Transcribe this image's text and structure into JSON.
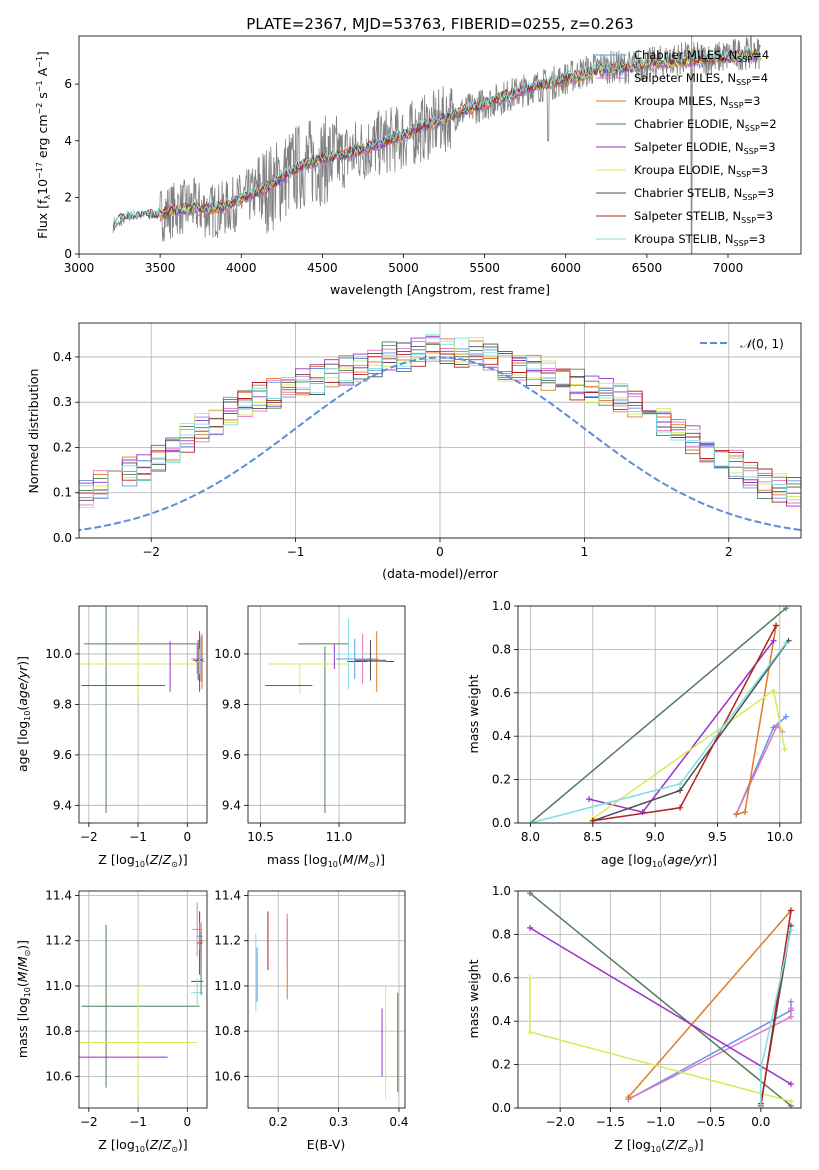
{
  "chart_data": [
    {
      "type": "line",
      "title": "PLATE=2367, MJD=53763, FIBERID=0255, z=0.263",
      "xlabel": "wavelength [Angstrom, rest frame]",
      "ylabel_parts": {
        "a": "Flux [f",
        "b": "10",
        "c": "−17",
        "d": " erg cm",
        "e": "−2",
        "f": " s",
        "g": "−1",
        "h": " A",
        "i": "−1",
        "j": "]",
        "sub": "λ"
      },
      "xlim": [
        3000,
        7450
      ],
      "ylim": [
        0,
        7.7
      ],
      "xticks": [
        "3000",
        "3500",
        "4000",
        "4500",
        "5000",
        "5500",
        "6000",
        "6500",
        "7000"
      ],
      "yticks": [
        "0",
        "2",
        "4",
        "6"
      ],
      "data_color": "#808080",
      "x": [
        3210,
        3300,
        3400,
        3500,
        3600,
        3700,
        3800,
        3900,
        4000,
        4100,
        4200,
        4300,
        4400,
        4500,
        4600,
        4700,
        4800,
        4900,
        5000,
        5100,
        5200,
        5300,
        5400,
        5500,
        5600,
        5700,
        5800,
        5900,
        6000,
        6100,
        6200,
        6300,
        6400,
        6500,
        6600,
        6700,
        6800,
        6900,
        7000,
        7100,
        7200
      ],
      "data_y": [
        0.9,
        1.3,
        1.4,
        1.4,
        1.6,
        1.7,
        1.5,
        1.6,
        1.9,
        2.2,
        2.4,
        2.9,
        3.2,
        3.3,
        3.4,
        3.6,
        3.8,
        4.0,
        4.1,
        4.4,
        4.6,
        4.9,
        5.1,
        5.3,
        5.5,
        5.7,
        5.9,
        6.0,
        6.2,
        6.4,
        6.6,
        6.6,
        6.6,
        6.7,
        6.8,
        6.9,
        6.9,
        6.9,
        7.0,
        7.1,
        7.1
      ],
      "model_y": [
        1.1,
        1.3,
        1.35,
        1.4,
        1.55,
        1.6,
        1.6,
        1.7,
        1.95,
        2.2,
        2.45,
        2.9,
        3.2,
        3.35,
        3.45,
        3.6,
        3.8,
        4.0,
        4.2,
        4.45,
        4.65,
        4.9,
        5.1,
        5.3,
        5.5,
        5.7,
        5.9,
        6.0,
        6.2,
        6.3,
        6.5,
        6.55,
        6.6,
        6.7,
        6.75,
        6.8,
        6.85,
        6.9,
        6.95,
        7.0,
        7.05
      ],
      "series": [
        {
          "name": "Chabrier MILES, N",
          "sub": "SSP",
          "suffix": "=4",
          "color": "#6495ed"
        },
        {
          "name": "Salpeter MILES, N",
          "sub": "SSP",
          "suffix": "=4",
          "color": "#e377c2"
        },
        {
          "name": "Kroupa MILES, N",
          "sub": "SSP",
          "suffix": "=3",
          "color": "#e07b27"
        },
        {
          "name": "Chabrier ELODIE, N",
          "sub": "SSP",
          "suffix": "=2",
          "color": "#507d5a"
        },
        {
          "name": "Salpeter ELODIE, N",
          "sub": "SSP",
          "suffix": "=3",
          "color": "#9932cc"
        },
        {
          "name": "Kroupa ELODIE, N",
          "sub": "SSP",
          "suffix": "=3",
          "color": "#d4ec5a"
        },
        {
          "name": "Chabrier STELIB, N",
          "sub": "SSP",
          "suffix": "=3",
          "color": "#505050"
        },
        {
          "name": "Salpeter STELIB, N",
          "sub": "SSP",
          "suffix": "=3",
          "color": "#b22222"
        },
        {
          "name": "Kroupa STELIB, N",
          "sub": "SSP",
          "suffix": "=3",
          "color": "#7fdfdf"
        }
      ]
    },
    {
      "type": "histogram",
      "xlabel": "(data-model)/error",
      "ylabel": "Normed distribution",
      "xlim": [
        -2.5,
        2.5
      ],
      "ylim": [
        0,
        0.475
      ],
      "xticks": [
        "−2",
        "−1",
        "0",
        "1",
        "2"
      ],
      "yticks": [
        "0.0",
        "0.1",
        "0.2",
        "0.3",
        "0.4"
      ],
      "legend": "N(0,1)",
      "legend_color": "#5b8fd6",
      "bin_width": 0.1,
      "base_values": [
        0.02,
        0.025,
        0.03,
        0.035,
        0.045,
        0.05,
        0.055,
        0.065,
        0.075,
        0.085,
        0.1,
        0.115,
        0.13,
        0.145,
        0.16,
        0.18,
        0.2,
        0.22,
        0.24,
        0.26,
        0.28,
        0.3,
        0.31,
        0.32,
        0.33,
        0.34,
        0.35,
        0.36,
        0.37,
        0.38,
        0.39,
        0.4,
        0.4,
        0.41,
        0.42,
        0.42,
        0.41,
        0.41,
        0.4,
        0.38,
        0.37,
        0.37,
        0.36,
        0.35,
        0.34,
        0.33,
        0.32,
        0.31,
        0.29,
        0.28,
        0.26,
        0.24,
        0.22,
        0.2,
        0.18,
        0.16,
        0.14,
        0.12,
        0.11,
        0.1,
        0.085,
        0.075,
        0.065,
        0.055,
        0.045,
        0.04,
        0.035,
        0.03,
        0.025,
        0.02
      ]
    },
    {
      "type": "scatter",
      "xlabel": "Z [log10(Z/Z⊙)]",
      "ylabel": "age  [log10(age/yr)]",
      "xlim": [
        -2.2,
        0.4
      ],
      "ylim": [
        9.33,
        10.19
      ],
      "xticks": [
        "−2",
        "−1",
        "0"
      ],
      "yticks": [
        "9.4",
        "9.6",
        "9.8",
        "10.0"
      ],
      "xlabel_parts": {
        "a": "Z [log",
        "b": "10",
        "c": "(",
        "d": "Z",
        "e": "/",
        "f": "Z",
        "g": "⊙",
        "h": ")]"
      }
    },
    {
      "type": "scatter",
      "xlabel": "mass [log10(M/M⊙)]",
      "xlim": [
        10.42,
        11.42
      ],
      "ylim": [
        9.33,
        10.19
      ],
      "xticks": [
        "10.5",
        "11.0"
      ],
      "yticks": [
        "9.4",
        "9.6",
        "9.8",
        "10.0"
      ]
    },
    {
      "type": "line",
      "xlabel": "age  [log10(age/yr)]",
      "ylabel": "mass weight",
      "xlim": [
        7.9,
        10.17
      ],
      "ylim": [
        0,
        1
      ],
      "xticks": [
        "8.0",
        "8.5",
        "9.0",
        "9.5",
        "10.0"
      ],
      "yticks": [
        "0.0",
        "0.2",
        "0.4",
        "0.6",
        "0.8",
        "1.0"
      ]
    },
    {
      "type": "scatter",
      "xlabel": "Z [log10(Z/Z⊙)]",
      "ylabel": "mass [log10(M/M⊙)]",
      "xlim": [
        -2.2,
        0.4
      ],
      "ylim": [
        10.46,
        11.42
      ],
      "xticks": [
        "−2",
        "−1",
        "0"
      ],
      "yticks": [
        "10.6",
        "10.8",
        "11.0",
        "11.2",
        "11.4"
      ]
    },
    {
      "type": "scatter",
      "xlabel": "E(B-V)",
      "xlim": [
        0.15,
        0.41
      ],
      "ylim": [
        10.46,
        11.42
      ],
      "xticks": [
        "0.2",
        "0.3",
        "0.4"
      ],
      "yticks": [
        "10.6",
        "10.8",
        "11.0",
        "11.2",
        "11.4"
      ]
    },
    {
      "type": "line",
      "xlabel": "Z [log10(Z/Z⊙)]",
      "ylabel": "mass weight",
      "xlim": [
        -2.42,
        0.4
      ],
      "ylim": [
        0,
        1
      ],
      "xticks": [
        "−2.0",
        "−1.5",
        "−1.0",
        "−0.5",
        "0.0"
      ],
      "yticks": [
        "0.0",
        "0.2",
        "0.4",
        "0.6",
        "0.8",
        "1.0"
      ]
    }
  ]
}
